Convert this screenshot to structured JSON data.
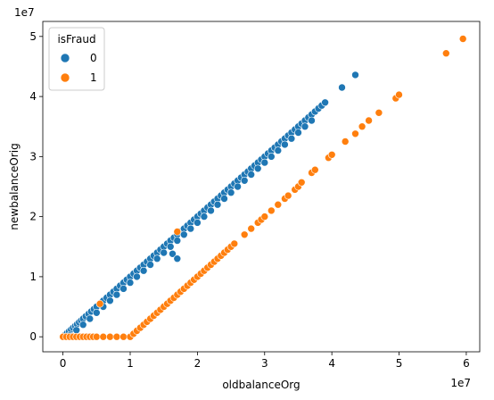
{
  "chart_data": {
    "type": "scatter",
    "xlabel": "oldbalanceOrg",
    "ylabel": "newbalanceOrig",
    "x_scale_label": "1e7",
    "y_scale_label": "1e7",
    "xlim": [
      -3000000,
      62000000
    ],
    "ylim": [
      -2500000,
      52500000
    ],
    "x_ticks": [
      0,
      10000000,
      20000000,
      30000000,
      40000000,
      50000000,
      60000000
    ],
    "x_tick_labels": [
      "0",
      "1",
      "2",
      "3",
      "4",
      "5",
      "6"
    ],
    "y_ticks": [
      0,
      10000000,
      20000000,
      30000000,
      40000000,
      50000000
    ],
    "y_tick_labels": [
      "0",
      "1",
      "2",
      "3",
      "4",
      "5"
    ],
    "grid": false,
    "legend": {
      "title": "isFraud",
      "placement": "top-left"
    },
    "series": [
      {
        "name": "0",
        "color": "#1f77b4",
        "points": [
          [
            0,
            0
          ],
          [
            300000,
            300000
          ],
          [
            600000,
            600000
          ],
          [
            900000,
            900000
          ],
          [
            1200000,
            1200000
          ],
          [
            1500000,
            1500000
          ],
          [
            1800000,
            1800000
          ],
          [
            2100000,
            2100000
          ],
          [
            2400000,
            2400000
          ],
          [
            2700000,
            2700000
          ],
          [
            3000000,
            3000000
          ],
          [
            3400000,
            3400000
          ],
          [
            3800000,
            3800000
          ],
          [
            4200000,
            4200000
          ],
          [
            4600000,
            4600000
          ],
          [
            5000000,
            5000000
          ],
          [
            5500000,
            5500000
          ],
          [
            6000000,
            6000000
          ],
          [
            6500000,
            6500000
          ],
          [
            7000000,
            7000000
          ],
          [
            7500000,
            7500000
          ],
          [
            8000000,
            8000000
          ],
          [
            8500000,
            8500000
          ],
          [
            9000000,
            9000000
          ],
          [
            9500000,
            9500000
          ],
          [
            10000000,
            10000000
          ],
          [
            10500000,
            10500000
          ],
          [
            11000000,
            11000000
          ],
          [
            11500000,
            11500000
          ],
          [
            12000000,
            12000000
          ],
          [
            12500000,
            12500000
          ],
          [
            13000000,
            13000000
          ],
          [
            13500000,
            13500000
          ],
          [
            14000000,
            14000000
          ],
          [
            14500000,
            14500000
          ],
          [
            15000000,
            15000000
          ],
          [
            15500000,
            15500000
          ],
          [
            16000000,
            16000000
          ],
          [
            16500000,
            16500000
          ],
          [
            17000000,
            17000000
          ],
          [
            17500000,
            17500000
          ],
          [
            18000000,
            18000000
          ],
          [
            18500000,
            18500000
          ],
          [
            19000000,
            19000000
          ],
          [
            19500000,
            19500000
          ],
          [
            20000000,
            20000000
          ],
          [
            20500000,
            20500000
          ],
          [
            21000000,
            21000000
          ],
          [
            21500000,
            21500000
          ],
          [
            22000000,
            22000000
          ],
          [
            22500000,
            22500000
          ],
          [
            23000000,
            23000000
          ],
          [
            23500000,
            23500000
          ],
          [
            24000000,
            24000000
          ],
          [
            24500000,
            24500000
          ],
          [
            25000000,
            25000000
          ],
          [
            25500000,
            25500000
          ],
          [
            26000000,
            26000000
          ],
          [
            26500000,
            26500000
          ],
          [
            27000000,
            27000000
          ],
          [
            27500000,
            27500000
          ],
          [
            28000000,
            28000000
          ],
          [
            28500000,
            28500000
          ],
          [
            29000000,
            29000000
          ],
          [
            29500000,
            29500000
          ],
          [
            30000000,
            30000000
          ],
          [
            30500000,
            30500000
          ],
          [
            31000000,
            31000000
          ],
          [
            31500000,
            31500000
          ],
          [
            32000000,
            32000000
          ],
          [
            32500000,
            32500000
          ],
          [
            33000000,
            33000000
          ],
          [
            33500000,
            33500000
          ],
          [
            34000000,
            34000000
          ],
          [
            34500000,
            34500000
          ],
          [
            35000000,
            35000000
          ],
          [
            35500000,
            35500000
          ],
          [
            36000000,
            36000000
          ],
          [
            36500000,
            36500000
          ],
          [
            37000000,
            37000000
          ],
          [
            37500000,
            37500000
          ],
          [
            38000000,
            38000000
          ],
          [
            38500000,
            38500000
          ],
          [
            39000000,
            39000000
          ],
          [
            1000000,
            200000
          ],
          [
            2000000,
            1100000
          ],
          [
            3000000,
            2000000
          ],
          [
            4000000,
            3000000
          ],
          [
            5000000,
            4000000
          ],
          [
            6000000,
            5000000
          ],
          [
            7000000,
            6000000
          ],
          [
            8000000,
            7000000
          ],
          [
            9000000,
            8000000
          ],
          [
            10000000,
            9000000
          ],
          [
            11000000,
            10000000
          ],
          [
            12000000,
            11000000
          ],
          [
            13000000,
            12000000
          ],
          [
            14000000,
            13000000
          ],
          [
            15000000,
            14000000
          ],
          [
            16000000,
            15000000
          ],
          [
            17000000,
            16000000
          ],
          [
            18000000,
            17000000
          ],
          [
            19000000,
            18000000
          ],
          [
            20000000,
            19000000
          ],
          [
            21000000,
            20000000
          ],
          [
            22000000,
            21000000
          ],
          [
            23000000,
            22000000
          ],
          [
            24000000,
            23000000
          ],
          [
            25000000,
            24000000
          ],
          [
            26000000,
            25000000
          ],
          [
            27000000,
            26000000
          ],
          [
            28000000,
            27000000
          ],
          [
            29000000,
            28000000
          ],
          [
            30000000,
            29000000
          ],
          [
            31000000,
            30000000
          ],
          [
            32000000,
            31000000
          ],
          [
            33000000,
            32000000
          ],
          [
            34000000,
            33000000
          ],
          [
            35000000,
            34000000
          ],
          [
            36000000,
            35000000
          ],
          [
            37000000,
            36000000
          ],
          [
            16300000,
            13800000
          ],
          [
            17000000,
            13000000
          ],
          [
            41500000,
            41500000
          ],
          [
            43500000,
            43600000
          ]
        ]
      },
      {
        "name": "1",
        "color": "#ff7f0e",
        "points": [
          [
            0,
            0
          ],
          [
            500000,
            0
          ],
          [
            1000000,
            0
          ],
          [
            1500000,
            0
          ],
          [
            2000000,
            0
          ],
          [
            2500000,
            0
          ],
          [
            3000000,
            0
          ],
          [
            3500000,
            0
          ],
          [
            4000000,
            0
          ],
          [
            4500000,
            0
          ],
          [
            5000000,
            0
          ],
          [
            6000000,
            0
          ],
          [
            7000000,
            0
          ],
          [
            8000000,
            0
          ],
          [
            9000000,
            0
          ],
          [
            10000000,
            0
          ],
          [
            5500000,
            5500000
          ],
          [
            17000000,
            17500000
          ],
          [
            10500000,
            500000
          ],
          [
            11000000,
            1000000
          ],
          [
            11500000,
            1500000
          ],
          [
            12000000,
            2000000
          ],
          [
            12500000,
            2500000
          ],
          [
            13000000,
            3000000
          ],
          [
            13500000,
            3500000
          ],
          [
            14000000,
            4000000
          ],
          [
            14500000,
            4500000
          ],
          [
            15000000,
            5000000
          ],
          [
            15500000,
            5500000
          ],
          [
            16000000,
            6000000
          ],
          [
            16500000,
            6500000
          ],
          [
            17000000,
            7000000
          ],
          [
            17500000,
            7500000
          ],
          [
            18000000,
            8000000
          ],
          [
            18500000,
            8500000
          ],
          [
            19000000,
            9000000
          ],
          [
            19500000,
            9500000
          ],
          [
            20000000,
            10000000
          ],
          [
            20500000,
            10500000
          ],
          [
            21000000,
            11000000
          ],
          [
            21500000,
            11500000
          ],
          [
            22000000,
            12000000
          ],
          [
            22500000,
            12500000
          ],
          [
            23000000,
            13000000
          ],
          [
            23500000,
            13500000
          ],
          [
            24000000,
            14000000
          ],
          [
            24500000,
            14500000
          ],
          [
            25000000,
            15000000
          ],
          [
            25500000,
            15500000
          ],
          [
            27000000,
            17000000
          ],
          [
            28000000,
            18000000
          ],
          [
            29000000,
            19000000
          ],
          [
            29500000,
            19500000
          ],
          [
            30000000,
            20000000
          ],
          [
            31000000,
            21000000
          ],
          [
            32000000,
            22000000
          ],
          [
            33000000,
            23000000
          ],
          [
            33500000,
            23500000
          ],
          [
            34500000,
            24500000
          ],
          [
            35000000,
            25000000
          ],
          [
            35500000,
            25700000
          ],
          [
            37000000,
            27300000
          ],
          [
            37500000,
            27800000
          ],
          [
            39500000,
            29800000
          ],
          [
            40000000,
            30300000
          ],
          [
            42000000,
            32500000
          ],
          [
            43500000,
            33800000
          ],
          [
            44500000,
            35000000
          ],
          [
            45500000,
            36000000
          ],
          [
            47000000,
            37300000
          ],
          [
            49500000,
            39700000
          ],
          [
            50000000,
            40300000
          ],
          [
            57000000,
            47200000
          ],
          [
            59500000,
            49600000
          ]
        ]
      }
    ]
  }
}
